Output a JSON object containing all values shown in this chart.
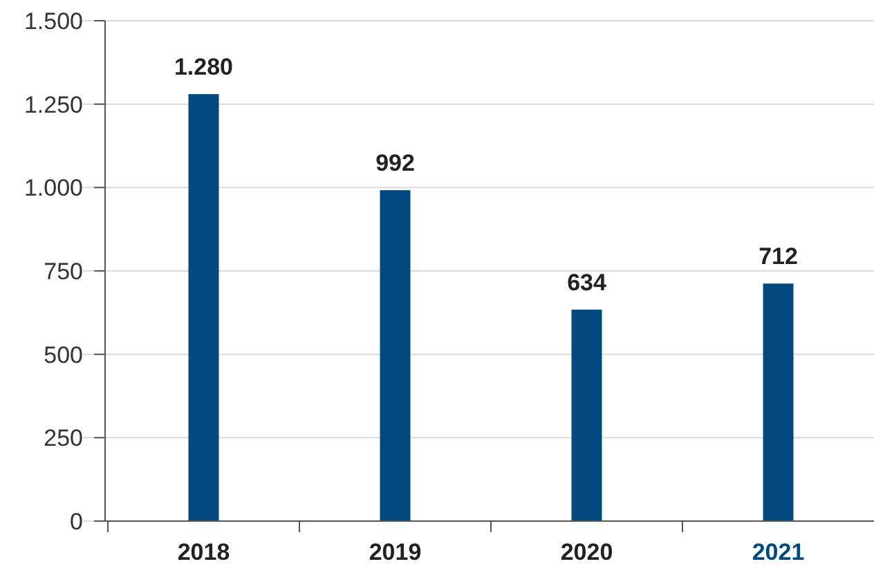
{
  "chart_data": {
    "type": "bar",
    "categories": [
      "2018",
      "2019",
      "2020",
      "2021"
    ],
    "values": [
      1280,
      992,
      634,
      712
    ],
    "color": "#004a80",
    "value_labels": [
      "1.280",
      "992",
      "634",
      "712"
    ],
    "ylim": [
      0,
      1500
    ],
    "yticks": [
      0,
      250,
      500,
      750,
      {
        "value": 1000,
        "label": "1.000"
      },
      {
        "value": 1250,
        "label": "1.250"
      },
      {
        "value": 1500,
        "label": "1.500"
      }
    ],
    "grid": "y"
  }
}
